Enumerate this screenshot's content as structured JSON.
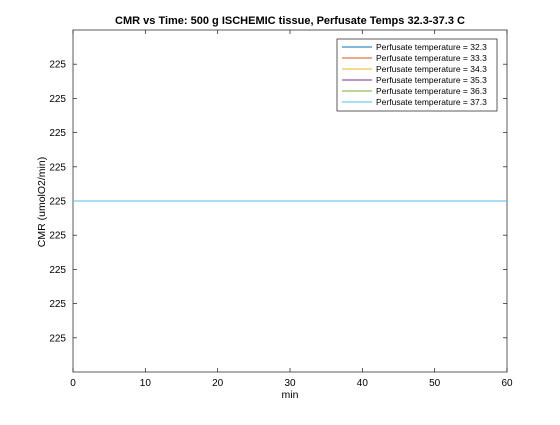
{
  "chart_data": {
    "type": "line",
    "title": "CMR vs Time: 500 g ISCHEMIC tissue, Perfusate Temps 32.3-37.3 C",
    "xlabel": "min",
    "ylabel": "CMR (umolO2/min)",
    "xlim": [
      0,
      60
    ],
    "xticks": [
      0,
      10,
      20,
      30,
      40,
      50,
      60
    ],
    "ylim": [
      0,
      10
    ],
    "yticks": [
      1,
      2,
      3,
      4,
      5,
      6,
      7,
      8,
      9
    ],
    "ytick_labels": [
      "225",
      "225",
      "225",
      "225",
      "225",
      "225",
      "225",
      "225",
      "225"
    ],
    "grid": false,
    "legend_position": "top-right",
    "x": [
      0,
      60
    ],
    "series": [
      {
        "name": "Perfusate temperature = 32.3",
        "color": "#0072bd",
        "values": [
          5,
          5
        ]
      },
      {
        "name": "Perfusate temperature = 33.3",
        "color": "#d95319",
        "values": [
          5,
          5
        ]
      },
      {
        "name": "Perfusate temperature = 34.3",
        "color": "#edb120",
        "values": [
          5,
          5
        ]
      },
      {
        "name": "Perfusate temperature = 35.3",
        "color": "#7e2f8e",
        "values": [
          5,
          5
        ]
      },
      {
        "name": "Perfusate temperature = 36.3",
        "color": "#77ac30",
        "values": [
          5,
          5
        ]
      },
      {
        "name": "Perfusate temperature = 37.3",
        "color": "#4dbeee",
        "values": [
          5,
          5
        ]
      }
    ]
  }
}
